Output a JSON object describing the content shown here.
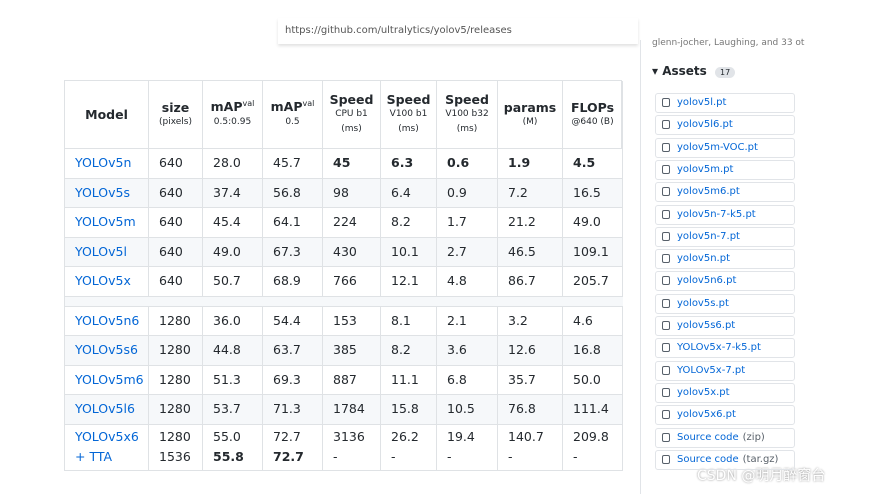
{
  "url": "https://github.com/ultralytics/yolov5/releases",
  "contributors": "glenn-jocher, Laughing, and 33 ot",
  "table": {
    "header": [
      {
        "title": "Model",
        "sub": []
      },
      {
        "title": "size",
        "sub": [
          "(pixels)"
        ]
      },
      {
        "title": "mAP",
        "sup": "val",
        "sub": [
          "0.5:0.95"
        ]
      },
      {
        "title": "mAP",
        "sup": "val",
        "sub": [
          "0.5"
        ]
      },
      {
        "title": "Speed",
        "sub": [
          "CPU b1",
          "(ms)"
        ]
      },
      {
        "title": "Speed",
        "sub": [
          "V100 b1",
          "(ms)"
        ]
      },
      {
        "title": "Speed",
        "sub": [
          "V100 b32",
          "(ms)"
        ]
      },
      {
        "title": "params",
        "sub": [
          "(M)"
        ]
      },
      {
        "title": "FLOPs",
        "sub": [
          "@640 (B)"
        ]
      }
    ],
    "rows": [
      [
        "YOLOv5n",
        "640",
        "28.0",
        "45.7",
        {
          "text": "45",
          "bold": true
        },
        {
          "text": "6.3",
          "bold": true
        },
        {
          "text": "0.6",
          "bold": true
        },
        {
          "text": "1.9",
          "bold": true
        },
        {
          "text": "4.5",
          "bold": true
        }
      ],
      [
        "YOLOv5s",
        "640",
        "37.4",
        "56.8",
        "98",
        "6.4",
        "0.9",
        "7.2",
        "16.5"
      ],
      [
        "YOLOv5m",
        "640",
        "45.4",
        "64.1",
        "224",
        "8.2",
        "1.7",
        "21.2",
        "49.0"
      ],
      [
        "YOLOv5l",
        "640",
        "49.0",
        "67.3",
        "430",
        "10.1",
        "2.7",
        "46.5",
        "109.1"
      ],
      [
        "YOLOv5x",
        "640",
        "50.7",
        "68.9",
        "766",
        "12.1",
        "4.8",
        "86.7",
        "205.7"
      ]
    ],
    "rows2": [
      [
        "YOLOv5n6",
        "1280",
        "36.0",
        "54.4",
        "153",
        "8.1",
        "2.1",
        "3.2",
        "4.6"
      ],
      [
        "YOLOv5s6",
        "1280",
        "44.8",
        "63.7",
        "385",
        "8.2",
        "3.6",
        "12.6",
        "16.8"
      ],
      [
        "YOLOv5m6",
        "1280",
        "51.3",
        "69.3",
        "887",
        "11.1",
        "6.8",
        "35.7",
        "50.0"
      ],
      [
        "YOLOv5l6",
        "1280",
        "53.7",
        "71.3",
        "1784",
        "15.8",
        "10.5",
        "76.8",
        "111.4"
      ],
      [
        [
          "YOLOv5x6",
          "+ TTA"
        ],
        [
          "1280",
          "1536"
        ],
        [
          "55.0",
          {
            "text": "55.8",
            "bold": true
          }
        ],
        [
          "72.7",
          {
            "text": "72.7",
            "bold": true
          }
        ],
        [
          "3136",
          "-"
        ],
        [
          "26.2",
          "-"
        ],
        [
          "19.4",
          "-"
        ],
        [
          "140.7",
          "-"
        ],
        [
          "209.8",
          "-"
        ]
      ]
    ]
  },
  "assets": {
    "title": "Assets",
    "count": "17",
    "items": [
      "yolov5l.pt",
      "yolov5l6.pt",
      "yolov5m-VOC.pt",
      "yolov5m.pt",
      "yolov5m6.pt",
      "yolov5n-7-k5.pt",
      "yolov5n-7.pt",
      "yolov5n.pt",
      "yolov5n6.pt",
      "yolov5s.pt",
      "yolov5s6.pt",
      "YOLOv5x-7-k5.pt",
      "YOLOv5x-7.pt",
      "yolov5x.pt",
      "yolov5x6.pt",
      {
        "name": "Source code",
        "ext": "(zip)"
      },
      {
        "name": "Source code",
        "ext": "(tar.gz)"
      }
    ]
  },
  "watermark": "CSDN @明月醉窗台"
}
